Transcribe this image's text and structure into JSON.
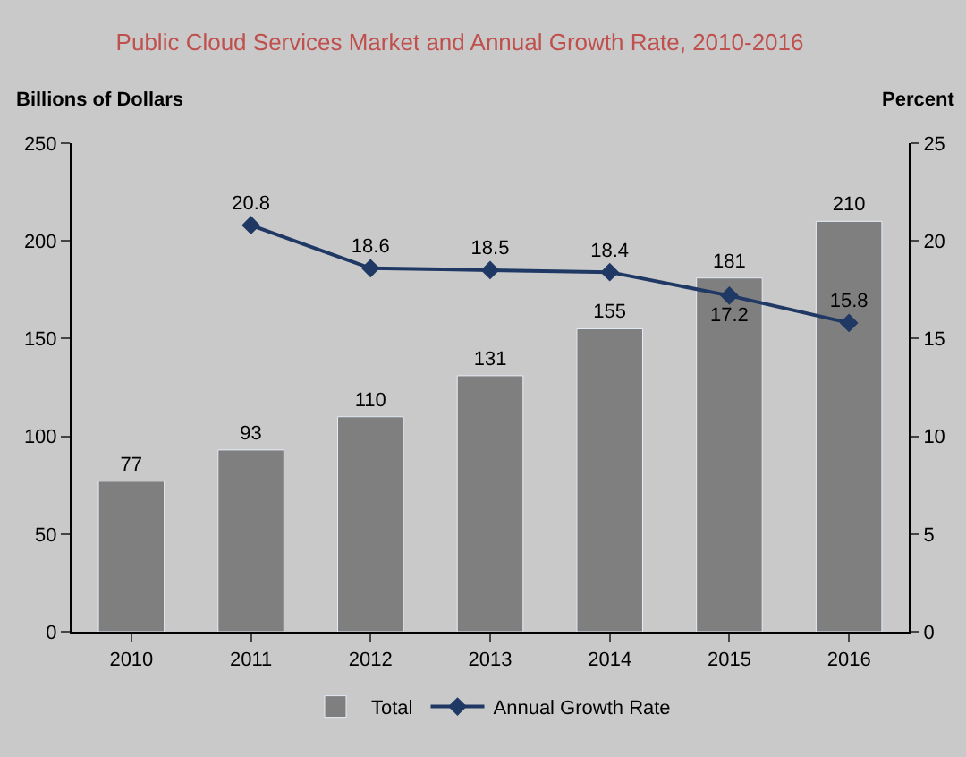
{
  "chart_data": {
    "type": "bar",
    "title": "Public Cloud Services Market and Annual Growth Rate, 2010-2016",
    "ylabel": "Billions of Dollars",
    "y2label": "Percent",
    "categories": [
      "2010",
      "2011",
      "2012",
      "2013",
      "2014",
      "2015",
      "2016"
    ],
    "series": [
      {
        "name": "Total",
        "color": "#7f7f7f",
        "values": [
          77,
          93,
          110,
          131,
          155,
          181,
          210
        ]
      },
      {
        "name": "Annual Growth Rate",
        "type": "line",
        "axis": "y2",
        "color": "#1f3864",
        "marker": "diamond",
        "values": [
          null,
          20.8,
          18.6,
          18.5,
          18.4,
          17.2,
          15.8
        ]
      }
    ],
    "ylim": [
      0,
      250
    ],
    "yticks": [
      0,
      50,
      100,
      150,
      200,
      250
    ],
    "y2lim": [
      0,
      25
    ],
    "y2ticks": [
      0,
      5,
      10,
      15,
      20,
      25
    ],
    "data_labels": true,
    "grid": false,
    "legend": "bottom"
  }
}
